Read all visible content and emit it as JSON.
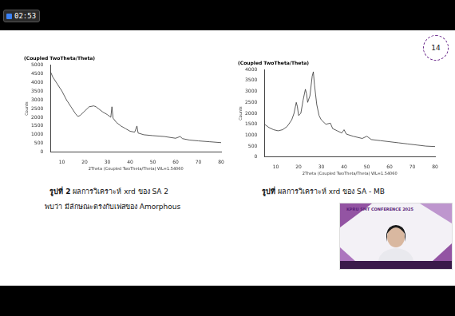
{
  "chart_data": [
    {
      "type": "line",
      "title": "(Coupled TwoTheta/Theta)",
      "x_label": "2Theta (Coupled TwoTheta/Theta) WL=1.54060",
      "y_label": "Counts",
      "x": [
        5,
        6,
        8,
        10,
        12,
        14,
        16,
        17,
        18,
        20,
        22,
        24,
        25,
        26,
        27,
        28,
        30,
        31.5,
        32,
        32.5,
        34,
        36,
        38,
        40,
        42,
        43,
        43.5,
        46,
        50,
        55,
        60,
        62,
        63,
        66,
        70,
        75,
        80
      ],
      "values": [
        4600,
        4300,
        3900,
        3500,
        3000,
        2600,
        2200,
        2050,
        2100,
        2350,
        2600,
        2650,
        2600,
        2500,
        2400,
        2300,
        2150,
        2000,
        2600,
        1950,
        1700,
        1500,
        1350,
        1200,
        1150,
        1500,
        1100,
        1000,
        950,
        900,
        800,
        900,
        780,
        700,
        650,
        600,
        550
      ],
      "color": "#333333",
      "xlim": [
        5,
        80
      ],
      "xticks": [
        10,
        20,
        30,
        40,
        50,
        60,
        70,
        80
      ],
      "ylim": [
        0,
        5000
      ],
      "yticks": [
        0,
        500,
        1000,
        1500,
        2000,
        2500,
        3000,
        3500,
        4000,
        4500,
        5000
      ],
      "grid": false
    },
    {
      "type": "line",
      "title": "(Coupled TwoTheta/Theta)",
      "x_label": "2Theta (Coupled TwoTheta/Theta) WL=1.54060",
      "y_label": "Counts",
      "x": [
        5,
        7,
        9,
        11,
        13,
        15,
        17,
        18,
        19,
        19.5,
        20,
        21,
        22,
        23,
        23.5,
        24,
        25,
        26,
        26.5,
        27,
        28,
        29,
        30,
        32,
        34,
        35,
        37,
        39,
        40,
        41,
        44,
        48,
        50,
        52,
        56,
        60,
        64,
        68,
        72,
        76,
        80
      ],
      "values": [
        1500,
        1350,
        1250,
        1200,
        1250,
        1400,
        1700,
        2000,
        2500,
        2300,
        1900,
        2000,
        2600,
        3100,
        2900,
        2500,
        2800,
        3700,
        3900,
        3300,
        2400,
        1900,
        1700,
        1500,
        1550,
        1300,
        1200,
        1100,
        1250,
        1050,
        950,
        850,
        950,
        800,
        750,
        700,
        650,
        600,
        550,
        500,
        480
      ],
      "color": "#333333",
      "xlim": [
        5,
        80
      ],
      "xticks": [
        10,
        20,
        30,
        40,
        50,
        60,
        70,
        80
      ],
      "ylim": [
        0,
        4000
      ],
      "yticks": [
        0,
        500,
        1000,
        1500,
        2000,
        2500,
        3000,
        3500,
        4000
      ],
      "grid": false
    }
  ],
  "screen": {
    "timer": "02:53",
    "slide_number": "14",
    "left_caption": {
      "figure": "รูปที่ 2",
      "text": "ผลการวิเคราะห์ xrd ของ SA 2",
      "note": "พบว่า มีลักษณะตรงกับเฟสของ Amorphous"
    },
    "right_caption": {
      "figure": "รูปที่",
      "text": "ผลการวิเคราะห์ xrd ของ SA - MB"
    },
    "webcam_banner": "KPRU SMT CONFERENCE 2025"
  }
}
